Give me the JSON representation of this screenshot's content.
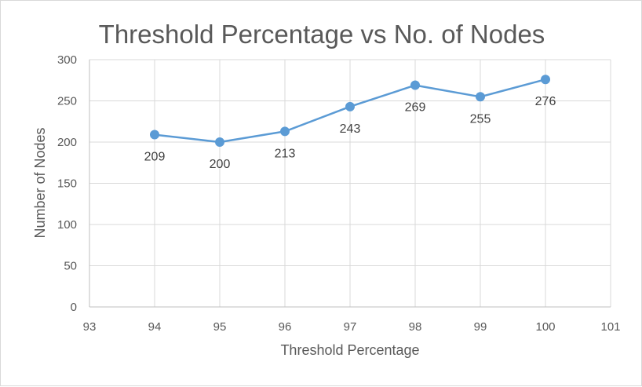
{
  "chart_data": {
    "type": "line",
    "title": "Threshold Percentage vs No. of Nodes",
    "xlabel": "Threshold Percentage",
    "ylabel": "Number of Nodes",
    "xlim": [
      93,
      101
    ],
    "ylim": [
      0,
      300
    ],
    "xticks": [
      93,
      94,
      95,
      96,
      97,
      98,
      99,
      100,
      101
    ],
    "yticks": [
      0,
      50,
      100,
      150,
      200,
      250,
      300
    ],
    "grid": true,
    "legend": "none",
    "series": [
      {
        "x": [
          94,
          95,
          96,
          97,
          98,
          99,
          100
        ],
        "values": [
          209,
          200,
          213,
          243,
          269,
          255,
          276
        ],
        "color": "#5b9bd5"
      }
    ]
  }
}
